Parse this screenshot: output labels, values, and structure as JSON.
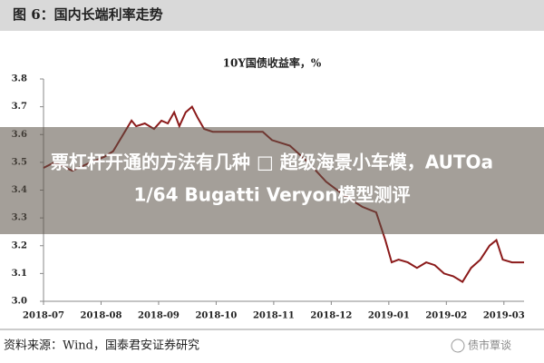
{
  "header": {
    "title": "图 6：国内长端利率走势"
  },
  "chart_data": {
    "type": "line",
    "title": "10Y国债收益率，%",
    "series": [
      {
        "color": "#8b1a1a",
        "x": [
          0,
          0.19,
          0.5,
          0.82,
          1.06,
          1.21,
          1.53,
          1.61,
          1.76,
          1.92,
          2.05,
          2.16,
          2.27,
          2.36,
          2.47,
          2.58,
          2.68,
          2.79,
          2.94,
          3.34,
          3.81,
          3.97,
          4.28,
          4.6,
          4.91,
          5.23,
          5.54,
          5.78,
          5.94,
          6.05,
          6.17,
          6.33,
          6.49,
          6.65,
          6.8,
          6.96,
          7.12,
          7.28,
          7.43,
          7.59,
          7.75,
          7.87,
          7.98,
          8.14,
          8.35
        ],
        "values": [
          3.48,
          3.5,
          3.47,
          3.5,
          3.52,
          3.54,
          3.65,
          3.63,
          3.64,
          3.62,
          3.65,
          3.64,
          3.68,
          3.63,
          3.68,
          3.7,
          3.66,
          3.62,
          3.61,
          3.61,
          3.61,
          3.58,
          3.56,
          3.5,
          3.43,
          3.38,
          3.34,
          3.32,
          3.22,
          3.14,
          3.15,
          3.14,
          3.12,
          3.14,
          3.13,
          3.1,
          3.09,
          3.07,
          3.12,
          3.15,
          3.2,
          3.22,
          3.15,
          3.14,
          3.14
        ]
      }
    ],
    "xlim": [
      0,
      8.35
    ],
    "xticks": [
      {
        "value": 0,
        "label": "2018-07"
      },
      {
        "value": 1,
        "label": "2018-08"
      },
      {
        "value": 2,
        "label": "2018-09"
      },
      {
        "value": 3,
        "label": "2018-10"
      },
      {
        "value": 4,
        "label": "2018-11"
      },
      {
        "value": 5,
        "label": "2018-12"
      },
      {
        "value": 6,
        "label": "2019-01"
      },
      {
        "value": 7,
        "label": "2019-02"
      },
      {
        "value": 8,
        "label": "2019-03"
      }
    ],
    "ylim": [
      3,
      3.8
    ],
    "yticks": [
      {
        "value": 3,
        "label": "3.0"
      },
      3.1,
      3.2,
      3.3,
      3.4,
      3.5,
      3.6,
      3.7,
      3.8
    ],
    "grid": false
  },
  "overlay": {
    "line1": "票杠杆开通的方法有几种 □ 超级海景小车模，AUTOa",
    "line2": "1/64 Bugatti Veryon模型测评"
  },
  "source": "资料来源：Wind，国泰君安证券研究",
  "watermark": "债市覃谈"
}
